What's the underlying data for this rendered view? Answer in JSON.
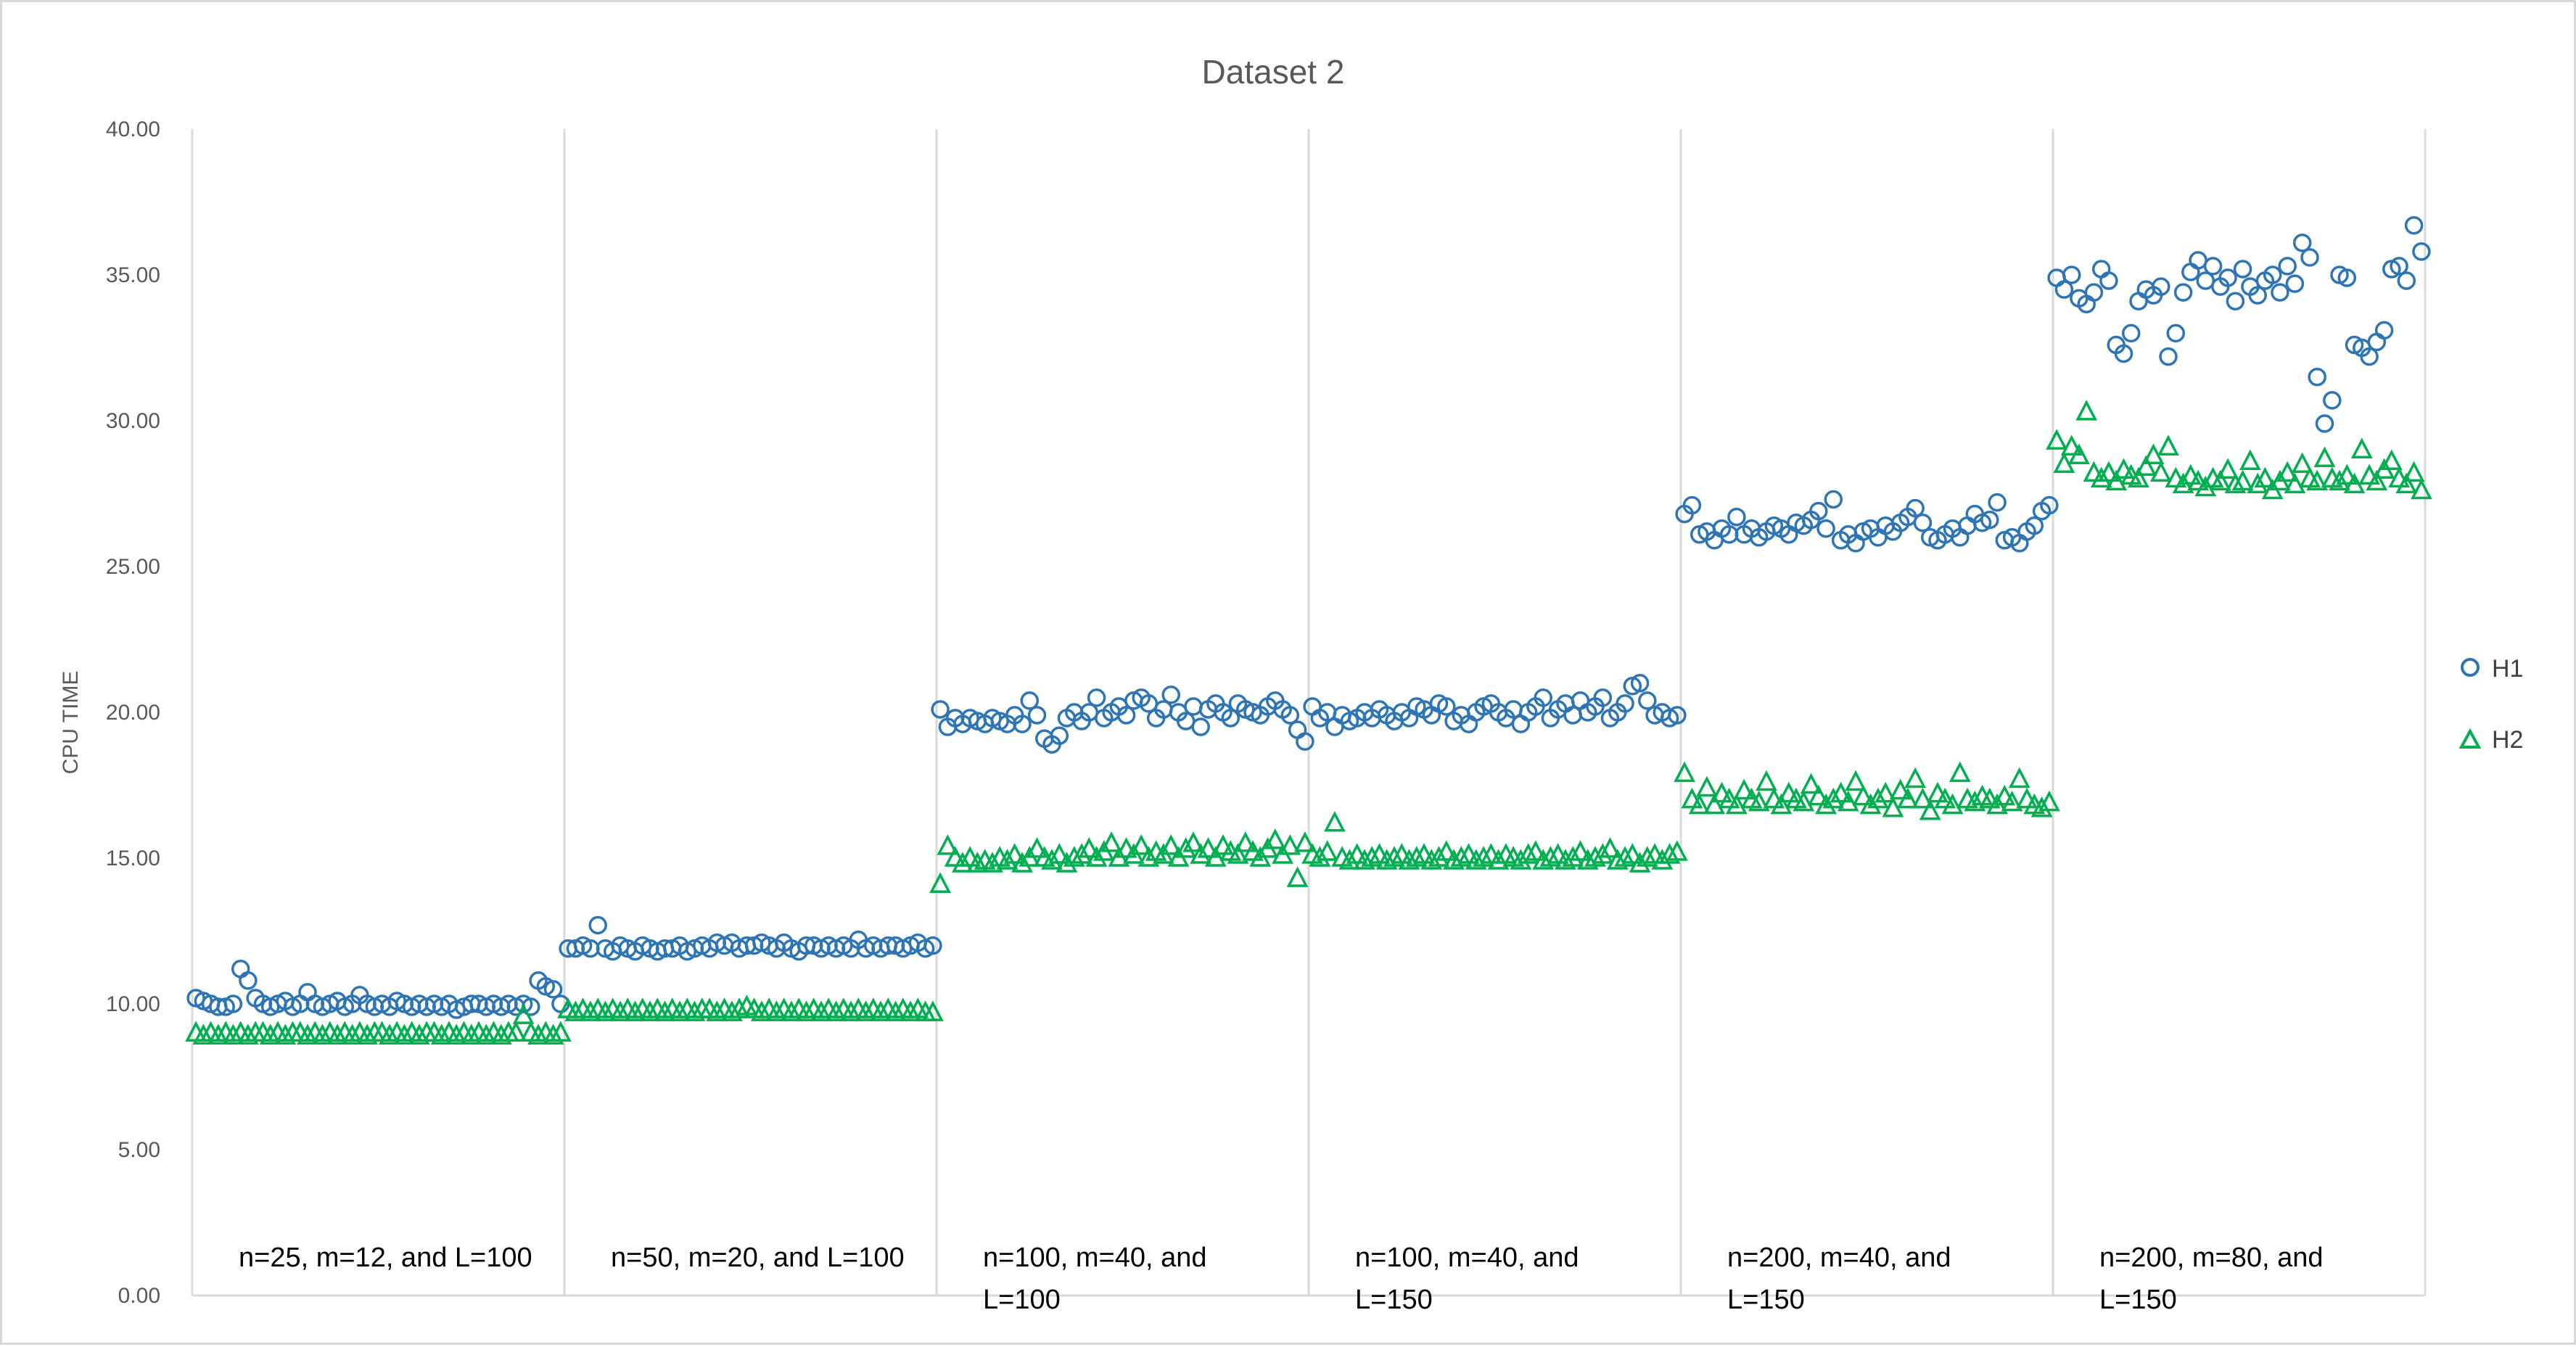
{
  "chart_data": {
    "type": "scatter",
    "title": "Dataset 2",
    "xlabel": "",
    "ylabel": "CPU TIME",
    "ylim": [
      0,
      40
    ],
    "yticks": [
      "0.00",
      "5.00",
      "10.00",
      "15.00",
      "20.00",
      "25.00",
      "30.00",
      "35.00",
      "40.00"
    ],
    "grid": "vertical separators between groups",
    "legend_position": "right",
    "colors": {
      "H1": "#2e75b6",
      "H2": "#00b050"
    },
    "groups": [
      {
        "label_lines": [
          "n=25, m=12, and L=100"
        ]
      },
      {
        "label_lines": [
          "n=50, m=20, and L=100"
        ]
      },
      {
        "label_lines": [
          "n=100, m=40, and",
          "L=100"
        ]
      },
      {
        "label_lines": [
          "n=100, m=40, and",
          "L=150"
        ]
      },
      {
        "label_lines": [
          "n=200, m=40, and",
          "L=150"
        ]
      },
      {
        "label_lines": [
          "n=200, m=80, and",
          "L=150"
        ]
      }
    ],
    "series": [
      {
        "name": "H1",
        "marker": "circle",
        "values": [
          10.2,
          10.1,
          10.0,
          9.9,
          9.9,
          10.0,
          11.2,
          10.8,
          10.2,
          10.0,
          9.9,
          10.0,
          10.1,
          9.9,
          10.0,
          10.4,
          10.0,
          9.9,
          10.0,
          10.1,
          9.9,
          10.0,
          10.3,
          10.0,
          9.9,
          10.0,
          9.9,
          10.1,
          10.0,
          9.9,
          10.0,
          9.9,
          10.0,
          9.9,
          10.0,
          9.8,
          9.9,
          10.0,
          10.0,
          9.9,
          10.0,
          9.9,
          10.0,
          9.9,
          10.0,
          9.9,
          10.8,
          10.6,
          10.5,
          10.0,
          11.9,
          11.9,
          12.0,
          11.9,
          12.7,
          11.9,
          11.8,
          12.0,
          11.9,
          11.8,
          12.0,
          11.9,
          11.8,
          11.9,
          11.9,
          12.0,
          11.8,
          11.9,
          12.0,
          11.9,
          12.1,
          12.0,
          12.1,
          11.9,
          12.0,
          12.0,
          12.1,
          12.0,
          11.9,
          12.1,
          11.9,
          11.8,
          12.0,
          12.0,
          11.9,
          12.0,
          11.9,
          12.0,
          11.9,
          12.2,
          11.9,
          12.0,
          11.9,
          12.0,
          12.0,
          11.9,
          12.0,
          12.1,
          11.9,
          12.0,
          20.1,
          19.5,
          19.8,
          19.6,
          19.8,
          19.7,
          19.6,
          19.8,
          19.7,
          19.6,
          19.9,
          19.6,
          20.4,
          19.9,
          19.1,
          18.9,
          19.2,
          19.8,
          20.0,
          19.7,
          20.0,
          20.5,
          19.8,
          20.0,
          20.2,
          19.9,
          20.4,
          20.5,
          20.3,
          19.8,
          20.1,
          20.6,
          20.0,
          19.7,
          20.2,
          19.5,
          20.1,
          20.3,
          20.0,
          19.8,
          20.3,
          20.1,
          20.0,
          19.9,
          20.2,
          20.4,
          20.1,
          19.9,
          19.4,
          19.0,
          20.2,
          19.8,
          20.0,
          19.5,
          19.9,
          19.7,
          19.8,
          20.0,
          19.8,
          20.1,
          19.9,
          19.7,
          20.0,
          19.8,
          20.2,
          20.1,
          19.9,
          20.3,
          20.2,
          19.7,
          19.9,
          19.6,
          20.0,
          20.2,
          20.3,
          20.0,
          19.8,
          20.1,
          19.6,
          20.0,
          20.2,
          20.5,
          19.8,
          20.1,
          20.3,
          19.9,
          20.4,
          20.0,
          20.2,
          20.5,
          19.8,
          20.0,
          20.3,
          20.9,
          21.0,
          20.4,
          19.9,
          20.0,
          19.8,
          19.9,
          26.8,
          27.1,
          26.1,
          26.2,
          25.9,
          26.3,
          26.1,
          26.7,
          26.1,
          26.3,
          26.0,
          26.2,
          26.4,
          26.3,
          26.1,
          26.5,
          26.4,
          26.6,
          26.9,
          26.3,
          27.3,
          25.9,
          26.1,
          25.8,
          26.2,
          26.3,
          26.0,
          26.4,
          26.2,
          26.5,
          26.7,
          27.0,
          26.5,
          26.0,
          25.9,
          26.1,
          26.3,
          26.0,
          26.4,
          26.8,
          26.5,
          26.6,
          27.2,
          25.9,
          26.0,
          25.8,
          26.2,
          26.4,
          26.9,
          27.1,
          34.9,
          34.5,
          35.0,
          34.2,
          34.0,
          34.4,
          35.2,
          34.8,
          32.6,
          32.3,
          33.0,
          34.1,
          34.5,
          34.3,
          34.6,
          32.2,
          33.0,
          34.4,
          35.1,
          35.5,
          34.8,
          35.3,
          34.6,
          34.9,
          34.1,
          35.2,
          34.6,
          34.3,
          34.8,
          35.0,
          34.4,
          35.3,
          34.7,
          36.1,
          35.6,
          31.5,
          29.9,
          30.7,
          35.0,
          34.9,
          32.6,
          32.5,
          32.2,
          32.7,
          33.1,
          35.2,
          35.3,
          34.8,
          36.7,
          35.8
        ]
      },
      {
        "name": "H2",
        "marker": "triangle",
        "values": [
          9.0,
          8.9,
          9.0,
          8.9,
          9.0,
          8.9,
          9.0,
          8.9,
          9.0,
          9.0,
          8.9,
          9.0,
          8.9,
          9.0,
          9.0,
          8.9,
          9.0,
          8.9,
          9.0,
          8.9,
          9.0,
          8.9,
          9.0,
          8.9,
          9.0,
          9.0,
          8.9,
          9.0,
          8.9,
          9.0,
          8.9,
          9.0,
          9.0,
          8.9,
          9.0,
          8.9,
          9.0,
          8.9,
          9.0,
          8.9,
          9.0,
          8.9,
          9.0,
          9.0,
          9.6,
          9.0,
          8.9,
          9.0,
          8.9,
          9.0,
          9.8,
          9.7,
          9.8,
          9.7,
          9.8,
          9.7,
          9.8,
          9.7,
          9.8,
          9.7,
          9.8,
          9.7,
          9.8,
          9.7,
          9.8,
          9.7,
          9.8,
          9.7,
          9.8,
          9.8,
          9.7,
          9.8,
          9.7,
          9.8,
          9.9,
          9.8,
          9.7,
          9.8,
          9.7,
          9.8,
          9.7,
          9.8,
          9.7,
          9.8,
          9.7,
          9.8,
          9.7,
          9.8,
          9.7,
          9.8,
          9.7,
          9.8,
          9.7,
          9.8,
          9.7,
          9.8,
          9.7,
          9.8,
          9.7,
          9.7,
          14.1,
          15.4,
          15.0,
          14.8,
          15.0,
          14.8,
          14.9,
          14.8,
          15.0,
          14.9,
          15.1,
          14.8,
          15.0,
          15.3,
          15.0,
          14.9,
          15.1,
          14.8,
          15.0,
          15.1,
          15.3,
          15.0,
          15.2,
          15.5,
          15.0,
          15.3,
          15.1,
          15.4,
          15.0,
          15.2,
          15.1,
          15.4,
          15.0,
          15.3,
          15.5,
          15.1,
          15.3,
          15.0,
          15.4,
          15.2,
          15.1,
          15.5,
          15.2,
          15.0,
          15.3,
          15.6,
          15.1,
          15.4,
          14.3,
          15.5,
          15.1,
          15.0,
          15.2,
          16.2,
          15.0,
          14.9,
          15.1,
          14.9,
          15.0,
          15.1,
          14.9,
          15.0,
          15.1,
          14.9,
          15.0,
          15.1,
          14.9,
          15.0,
          15.2,
          14.9,
          15.0,
          15.1,
          14.9,
          15.0,
          15.1,
          14.9,
          15.1,
          15.0,
          14.9,
          15.1,
          15.2,
          14.9,
          15.0,
          15.1,
          14.9,
          15.0,
          15.2,
          14.9,
          15.0,
          15.1,
          15.3,
          14.9,
          15.0,
          15.1,
          14.8,
          15.0,
          15.1,
          14.9,
          15.1,
          15.2,
          17.9,
          17.0,
          16.8,
          17.4,
          16.8,
          17.2,
          17.0,
          16.8,
          17.3,
          17.0,
          16.9,
          17.6,
          17.0,
          16.8,
          17.2,
          17.0,
          16.9,
          17.5,
          17.1,
          16.8,
          17.0,
          17.2,
          16.9,
          17.6,
          17.1,
          16.8,
          17.0,
          17.2,
          16.7,
          17.3,
          17.0,
          17.7,
          17.0,
          16.6,
          17.2,
          17.0,
          16.8,
          17.9,
          17.0,
          16.9,
          17.1,
          17.0,
          16.8,
          17.1,
          16.9,
          17.7,
          17.0,
          16.8,
          16.7,
          16.9,
          29.3,
          28.5,
          29.1,
          28.8,
          30.3,
          28.2,
          28.0,
          28.2,
          27.9,
          28.3,
          28.1,
          28.0,
          28.4,
          28.8,
          28.2,
          29.1,
          28.0,
          27.8,
          28.1,
          27.9,
          27.7,
          28.0,
          27.9,
          28.3,
          27.8,
          27.9,
          28.6,
          27.8,
          28.0,
          27.6,
          27.9,
          28.2,
          27.8,
          28.5,
          28.0,
          27.9,
          28.7,
          28.0,
          27.9,
          28.1,
          27.8,
          29.0,
          28.1,
          27.9,
          28.3,
          28.6,
          28.0,
          27.8,
          28.2,
          27.6
        ]
      }
    ]
  }
}
